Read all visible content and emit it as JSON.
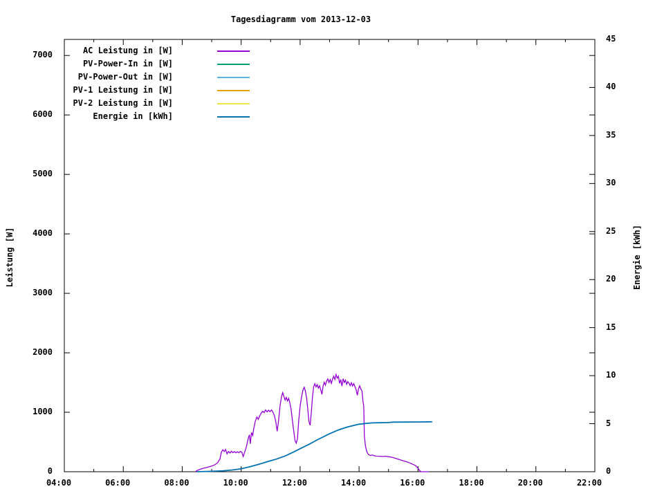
{
  "title": "Tagesdiagramm vom 2013-12-03",
  "chart_data": {
    "type": "line",
    "title": "Tagesdiagramm vom 2013-12-03",
    "grid": false,
    "legend_position": "top-left-inside",
    "x_axis": {
      "label": "",
      "unit": "time",
      "range_hours": [
        4,
        22
      ],
      "major_tick_step_hours": 2,
      "minor_tick_step_hours": 1,
      "tick_labels": [
        "04:00",
        "06:00",
        "08:00",
        "10:00",
        "12:00",
        "14:00",
        "16:00",
        "18:00",
        "20:00",
        "22:00"
      ]
    },
    "y_axis_left": {
      "label": "Leistung [W]",
      "range": [
        0,
        7270
      ],
      "tick_step": 1000,
      "tick_labels": [
        "0",
        "1000",
        "2000",
        "3000",
        "4000",
        "5000",
        "6000",
        "7000"
      ]
    },
    "y_axis_right": {
      "label": "Energie [kWh]",
      "range": [
        0,
        45
      ],
      "tick_step": 5,
      "tick_labels": [
        "0",
        "5",
        "10",
        "15",
        "20",
        "25",
        "30",
        "35",
        "40",
        "45"
      ]
    },
    "legend": [
      {
        "label": "AC Leistung in [W]",
        "color": "#9400d3"
      },
      {
        "label": "PV-Power-In in [W]",
        "color": "#009e73"
      },
      {
        "label": "PV-Power-Out in [W]",
        "color": "#56b4e9"
      },
      {
        "label": "PV-1 Leistung in [W]",
        "color": "#e69f00"
      },
      {
        "label": "PV-2 Leistung in [W]",
        "color": "#f0e442"
      },
      {
        "label": "Energie in [kWh]",
        "color": "#0072b2"
      }
    ],
    "series": [
      {
        "name": "AC Leistung in [W]",
        "data_name": "ac-power-series",
        "color": "#9400d3",
        "axis": "left",
        "stroke_width": 1.3,
        "points": [
          [
            8.45,
            0
          ],
          [
            8.5,
            20
          ],
          [
            8.6,
            40
          ],
          [
            8.72,
            58
          ],
          [
            8.85,
            75
          ],
          [
            9.0,
            95
          ],
          [
            9.1,
            115
          ],
          [
            9.2,
            150
          ],
          [
            9.28,
            215
          ],
          [
            9.33,
            330
          ],
          [
            9.38,
            370
          ],
          [
            9.43,
            340
          ],
          [
            9.47,
            375
          ],
          [
            9.52,
            300
          ],
          [
            9.57,
            340
          ],
          [
            9.62,
            315
          ],
          [
            9.67,
            345
          ],
          [
            9.72,
            320
          ],
          [
            9.77,
            340
          ],
          [
            9.82,
            318
          ],
          [
            9.87,
            335
          ],
          [
            9.92,
            320
          ],
          [
            9.97,
            340
          ],
          [
            10.02,
            330
          ],
          [
            10.07,
            255
          ],
          [
            10.12,
            330
          ],
          [
            10.16,
            390
          ],
          [
            10.2,
            470
          ],
          [
            10.24,
            560
          ],
          [
            10.28,
            620
          ],
          [
            10.31,
            470
          ],
          [
            10.35,
            660
          ],
          [
            10.39,
            610
          ],
          [
            10.43,
            730
          ],
          [
            10.48,
            850
          ],
          [
            10.53,
            920
          ],
          [
            10.58,
            880
          ],
          [
            10.63,
            940
          ],
          [
            10.68,
            985
          ],
          [
            10.73,
            1015
          ],
          [
            10.78,
            995
          ],
          [
            10.83,
            1040
          ],
          [
            10.88,
            1005
          ],
          [
            10.93,
            1035
          ],
          [
            10.98,
            1010
          ],
          [
            11.03,
            1040
          ],
          [
            11.08,
            1000
          ],
          [
            11.13,
            940
          ],
          [
            11.18,
            830
          ],
          [
            11.22,
            680
          ],
          [
            11.27,
            860
          ],
          [
            11.32,
            1110
          ],
          [
            11.37,
            1260
          ],
          [
            11.41,
            1330
          ],
          [
            11.45,
            1265
          ],
          [
            11.49,
            1205
          ],
          [
            11.53,
            1250
          ],
          [
            11.57,
            1190
          ],
          [
            11.61,
            1235
          ],
          [
            11.65,
            1160
          ],
          [
            11.69,
            1060
          ],
          [
            11.73,
            900
          ],
          [
            11.78,
            700
          ],
          [
            11.83,
            520
          ],
          [
            11.87,
            480
          ],
          [
            11.91,
            560
          ],
          [
            11.95,
            850
          ],
          [
            12.0,
            1100
          ],
          [
            12.05,
            1260
          ],
          [
            12.1,
            1380
          ],
          [
            12.14,
            1420
          ],
          [
            12.18,
            1350
          ],
          [
            12.22,
            1240
          ],
          [
            12.26,
            1050
          ],
          [
            12.3,
            840
          ],
          [
            12.34,
            780
          ],
          [
            12.38,
            1000
          ],
          [
            12.42,
            1260
          ],
          [
            12.46,
            1430
          ],
          [
            12.5,
            1480
          ],
          [
            12.54,
            1425
          ],
          [
            12.58,
            1465
          ],
          [
            12.62,
            1405
          ],
          [
            12.66,
            1445
          ],
          [
            12.7,
            1380
          ],
          [
            12.74,
            1300
          ],
          [
            12.78,
            1440
          ],
          [
            12.82,
            1505
          ],
          [
            12.86,
            1455
          ],
          [
            12.9,
            1525
          ],
          [
            12.94,
            1560
          ],
          [
            12.98,
            1500
          ],
          [
            13.02,
            1550
          ],
          [
            13.06,
            1485
          ],
          [
            13.1,
            1560
          ],
          [
            13.14,
            1605
          ],
          [
            13.18,
            1550
          ],
          [
            13.22,
            1635
          ],
          [
            13.26,
            1575
          ],
          [
            13.3,
            1605
          ],
          [
            13.34,
            1485
          ],
          [
            13.38,
            1550
          ],
          [
            13.42,
            1440
          ],
          [
            13.46,
            1565
          ],
          [
            13.5,
            1500
          ],
          [
            13.54,
            1540
          ],
          [
            13.58,
            1470
          ],
          [
            13.62,
            1515
          ],
          [
            13.66,
            1488
          ],
          [
            13.7,
            1448
          ],
          [
            13.74,
            1498
          ],
          [
            13.78,
            1440
          ],
          [
            13.82,
            1482
          ],
          [
            13.86,
            1432
          ],
          [
            13.9,
            1382
          ],
          [
            13.94,
            1285
          ],
          [
            13.98,
            1390
          ],
          [
            14.02,
            1445
          ],
          [
            14.06,
            1392
          ],
          [
            14.1,
            1358
          ],
          [
            14.13,
            1190
          ],
          [
            14.16,
            1100
          ],
          [
            14.18,
            600
          ],
          [
            14.22,
            420
          ],
          [
            14.27,
            330
          ],
          [
            14.32,
            288
          ],
          [
            14.38,
            272
          ],
          [
            14.45,
            282
          ],
          [
            14.52,
            268
          ],
          [
            14.6,
            262
          ],
          [
            14.7,
            260
          ],
          [
            14.8,
            256
          ],
          [
            14.9,
            260
          ],
          [
            15.0,
            252
          ],
          [
            15.1,
            246
          ],
          [
            15.2,
            232
          ],
          [
            15.3,
            215
          ],
          [
            15.42,
            196
          ],
          [
            15.52,
            180
          ],
          [
            15.62,
            168
          ],
          [
            15.72,
            148
          ],
          [
            15.82,
            126
          ],
          [
            15.92,
            102
          ],
          [
            16.0,
            58
          ],
          [
            16.05,
            24
          ],
          [
            16.1,
            0
          ],
          [
            16.37,
            0
          ]
        ]
      },
      {
        "name": "PV-Power-In in [W]",
        "data_name": "pv-power-in-series",
        "color": "#009e73",
        "axis": "left",
        "stroke_width": 1.3,
        "points": [],
        "note": "no visibly distinct trace in the plot"
      },
      {
        "name": "PV-Power-Out in [W]",
        "data_name": "pv-power-out-series",
        "color": "#56b4e9",
        "axis": "left",
        "stroke_width": 1.3,
        "points": [],
        "note": "no visibly distinct trace in the plot"
      },
      {
        "name": "PV-1 Leistung in [W]",
        "data_name": "pv1-power-series",
        "color": "#e69f00",
        "axis": "left",
        "stroke_width": 1.3,
        "points": [],
        "note": "no visibly distinct trace in the plot"
      },
      {
        "name": "PV-2 Leistung in [W]",
        "data_name": "pv2-power-series",
        "color": "#f0e442",
        "axis": "left",
        "stroke_width": 1.3,
        "points": [],
        "note": "no visibly distinct trace in the plot"
      },
      {
        "name": "Energie in [kWh]",
        "data_name": "energy-series",
        "color": "#0072b2",
        "axis": "right",
        "stroke_width": 1.8,
        "points": [
          [
            8.5,
            0
          ],
          [
            9.0,
            0.04
          ],
          [
            9.4,
            0.1
          ],
          [
            9.7,
            0.18
          ],
          [
            10.0,
            0.3
          ],
          [
            10.3,
            0.52
          ],
          [
            10.6,
            0.78
          ],
          [
            10.9,
            1.05
          ],
          [
            11.2,
            1.32
          ],
          [
            11.5,
            1.65
          ],
          [
            11.8,
            2.08
          ],
          [
            12.0,
            2.4
          ],
          [
            12.3,
            2.85
          ],
          [
            12.6,
            3.35
          ],
          [
            12.9,
            3.8
          ],
          [
            13.0,
            3.95
          ],
          [
            13.3,
            4.35
          ],
          [
            13.6,
            4.65
          ],
          [
            13.9,
            4.88
          ],
          [
            14.0,
            4.95
          ],
          [
            14.2,
            5.02
          ],
          [
            14.45,
            5.08
          ],
          [
            14.7,
            5.1
          ],
          [
            15.0,
            5.12
          ],
          [
            15.15,
            5.16
          ],
          [
            15.6,
            5.17
          ],
          [
            16.0,
            5.18
          ],
          [
            16.48,
            5.2
          ]
        ]
      }
    ]
  }
}
